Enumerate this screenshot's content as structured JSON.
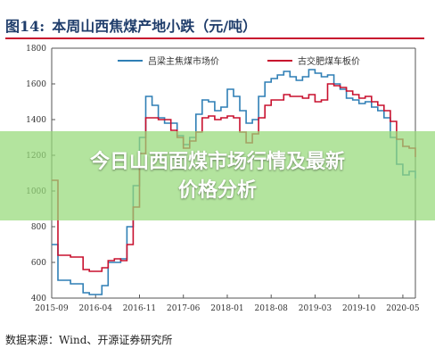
{
  "figure": {
    "number": "图14:",
    "title": "本周山西焦煤产地小跌（元/吨）"
  },
  "source": "数据来源：Wind、开源证券研究所",
  "overlay": {
    "line1": "今日山西面煤市场行情及最新",
    "line2": "价格分析"
  },
  "colors": {
    "series_blue": "#2f7fb5",
    "series_red": "#c8102e",
    "axis": "#555555",
    "title": "#1f3d6b",
    "overlay": "#96da78"
  },
  "chart_data": {
    "type": "line",
    "xlabel": "",
    "ylabel": "",
    "ylim": [
      400,
      1800
    ],
    "yticks": [
      400,
      600,
      800,
      1000,
      1200,
      1400,
      1600,
      1800
    ],
    "xlim": [
      "2015-09",
      "2020-07"
    ],
    "xticks": [
      "2015-09",
      "2016-04",
      "2016-11",
      "2017-06",
      "2018-01",
      "2018-08",
      "2019-03",
      "2019-10",
      "2020-05"
    ],
    "legend_position": "top",
    "grid": false,
    "series": [
      {
        "name": "吕梁主焦煤市场价",
        "color": "#2f7fb5",
        "points": [
          [
            "2015-09",
            700
          ],
          [
            "2015-10",
            500
          ],
          [
            "2015-12",
            480
          ],
          [
            "2016-02",
            430
          ],
          [
            "2016-03",
            420
          ],
          [
            "2016-04",
            420
          ],
          [
            "2016-05",
            470
          ],
          [
            "2016-06",
            600
          ],
          [
            "2016-07",
            600
          ],
          [
            "2016-08",
            620
          ],
          [
            "2016-09",
            800
          ],
          [
            "2016-10",
            1030
          ],
          [
            "2016-11",
            1300
          ],
          [
            "2016-12",
            1530
          ],
          [
            "2017-01",
            1480
          ],
          [
            "2017-02",
            1410
          ],
          [
            "2017-03",
            1380
          ],
          [
            "2017-04",
            1380
          ],
          [
            "2017-05",
            1310
          ],
          [
            "2017-06",
            1260
          ],
          [
            "2017-07",
            1300
          ],
          [
            "2017-08",
            1430
          ],
          [
            "2017-09",
            1510
          ],
          [
            "2017-10",
            1500
          ],
          [
            "2017-11",
            1450
          ],
          [
            "2017-12",
            1470
          ],
          [
            "2018-01",
            1570
          ],
          [
            "2018-02",
            1530
          ],
          [
            "2018-03",
            1450
          ],
          [
            "2018-04",
            1380
          ],
          [
            "2018-05",
            1400
          ],
          [
            "2018-06",
            1530
          ],
          [
            "2018-07",
            1610
          ],
          [
            "2018-08",
            1630
          ],
          [
            "2018-09",
            1650
          ],
          [
            "2018-10",
            1670
          ],
          [
            "2018-11",
            1640
          ],
          [
            "2018-12",
            1620
          ],
          [
            "2019-01",
            1640
          ],
          [
            "2019-02",
            1680
          ],
          [
            "2019-03",
            1660
          ],
          [
            "2019-04",
            1640
          ],
          [
            "2019-05",
            1650
          ],
          [
            "2019-06",
            1600
          ],
          [
            "2019-07",
            1570
          ],
          [
            "2019-08",
            1520
          ],
          [
            "2019-09",
            1510
          ],
          [
            "2019-10",
            1490
          ],
          [
            "2019-11",
            1500
          ],
          [
            "2019-12",
            1470
          ],
          [
            "2020-01",
            1450
          ],
          [
            "2020-02",
            1410
          ],
          [
            "2020-03",
            1300
          ],
          [
            "2020-04",
            1150
          ],
          [
            "2020-05",
            1090
          ],
          [
            "2020-06",
            1110
          ],
          [
            "2020-07",
            1070
          ]
        ]
      },
      {
        "name": "古交肥煤车板价",
        "color": "#c8102e",
        "points": [
          [
            "2015-09",
            1060
          ],
          [
            "2015-10",
            640
          ],
          [
            "2015-12",
            630
          ],
          [
            "2016-02",
            560
          ],
          [
            "2016-03",
            550
          ],
          [
            "2016-04",
            550
          ],
          [
            "2016-05",
            570
          ],
          [
            "2016-06",
            610
          ],
          [
            "2016-07",
            620
          ],
          [
            "2016-08",
            610
          ],
          [
            "2016-09",
            700
          ],
          [
            "2016-10",
            910
          ],
          [
            "2016-11",
            1210
          ],
          [
            "2016-12",
            1410
          ],
          [
            "2017-01",
            1410
          ],
          [
            "2017-02",
            1400
          ],
          [
            "2017-03",
            1400
          ],
          [
            "2017-04",
            1340
          ],
          [
            "2017-05",
            1300
          ],
          [
            "2017-06",
            1240
          ],
          [
            "2017-07",
            1280
          ],
          [
            "2017-08",
            1330
          ],
          [
            "2017-09",
            1410
          ],
          [
            "2017-10",
            1420
          ],
          [
            "2017-11",
            1400
          ],
          [
            "2017-12",
            1410
          ],
          [
            "2018-01",
            1420
          ],
          [
            "2018-02",
            1410
          ],
          [
            "2018-03",
            1330
          ],
          [
            "2018-04",
            1270
          ],
          [
            "2018-05",
            1320
          ],
          [
            "2018-06",
            1410
          ],
          [
            "2018-07",
            1480
          ],
          [
            "2018-08",
            1510
          ],
          [
            "2018-09",
            1510
          ],
          [
            "2018-10",
            1540
          ],
          [
            "2018-11",
            1530
          ],
          [
            "2018-12",
            1530
          ],
          [
            "2019-01",
            1520
          ],
          [
            "2019-02",
            1540
          ],
          [
            "2019-03",
            1500
          ],
          [
            "2019-04",
            1510
          ],
          [
            "2019-05",
            1600
          ],
          [
            "2019-06",
            1590
          ],
          [
            "2019-07",
            1580
          ],
          [
            "2019-08",
            1560
          ],
          [
            "2019-09",
            1540
          ],
          [
            "2019-10",
            1520
          ],
          [
            "2019-11",
            1530
          ],
          [
            "2019-12",
            1500
          ],
          [
            "2020-01",
            1480
          ],
          [
            "2020-02",
            1450
          ],
          [
            "2020-03",
            1390
          ],
          [
            "2020-04",
            1290
          ],
          [
            "2020-05",
            1250
          ],
          [
            "2020-06",
            1240
          ],
          [
            "2020-07",
            1190
          ]
        ]
      }
    ]
  }
}
